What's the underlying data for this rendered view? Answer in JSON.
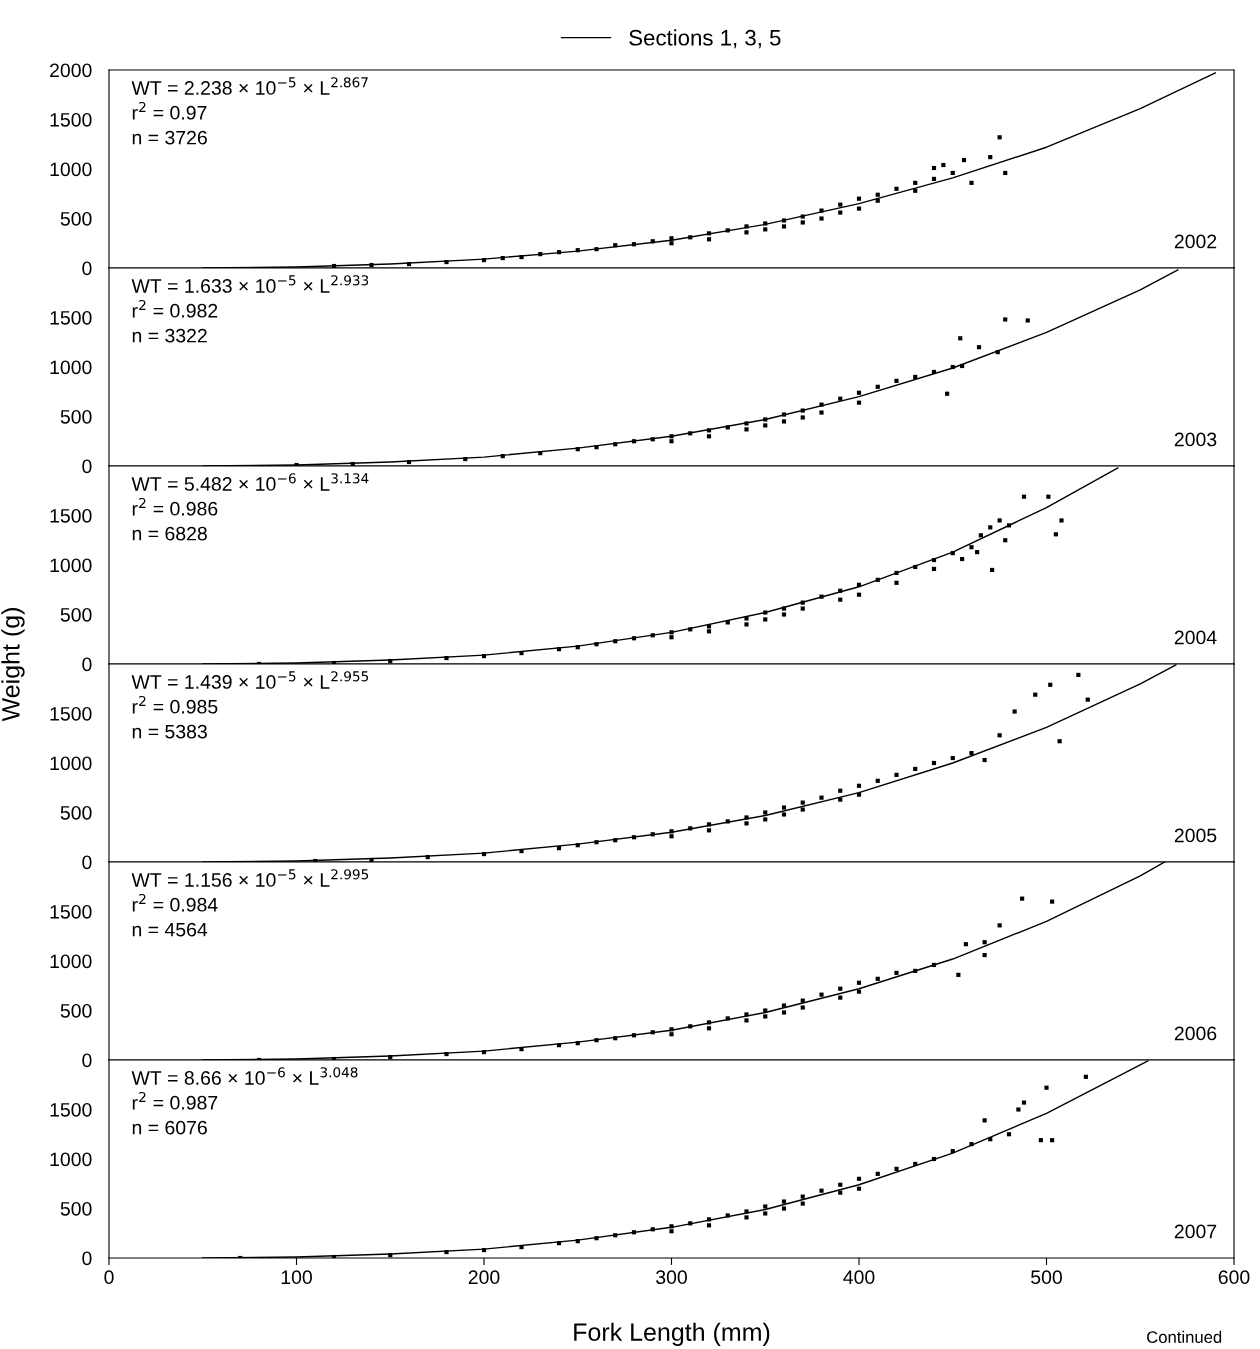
{
  "chart_data": [
    {
      "type": "scatter",
      "legend": "top",
      "tick_labels": "y",
      "grid": false,
      "xlim": [
        0,
        600
      ],
      "xticks": [
        0,
        100,
        200,
        300,
        400,
        500,
        600
      ],
      "ylim": [
        0,
        2000
      ],
      "yticks": [
        0,
        500,
        1000,
        1500,
        2000
      ],
      "annotations": [
        "WT = 2.238 × 10$^{−5}$ × L$^{2.867}$",
        "r$^{2}$ = 0.97",
        "n = 3726",
        "2002"
      ],
      "series": [
        {
          "marker": "square",
          "color": "#000000",
          "x": [
            120,
            140,
            160,
            180,
            200,
            210,
            220,
            230,
            240,
            250,
            260,
            270,
            280,
            290,
            300,
            300,
            310,
            320,
            320,
            330,
            340,
            340,
            350,
            350,
            360,
            360,
            370,
            370,
            380,
            380,
            390,
            390,
            400,
            400,
            410,
            410,
            420,
            430,
            430,
            440,
            440,
            445,
            450,
            456,
            460,
            470,
            475,
            478
          ],
          "values": [
            20,
            30,
            40,
            60,
            80,
            100,
            110,
            140,
            160,
            180,
            190,
            230,
            240,
            270,
            300,
            250,
            310,
            350,
            290,
            380,
            420,
            360,
            450,
            390,
            480,
            420,
            520,
            460,
            580,
            500,
            640,
            560,
            700,
            600,
            740,
            680,
            800,
            860,
            780,
            900,
            1010,
            1040,
            960,
            1090,
            860,
            1120,
            1320,
            960
          ]
        },
        {
          "type": "line",
          "marker": "none",
          "name": "Sections 1, 3, 5",
          "color": "#000000",
          "x": [
            50,
            100,
            150,
            200,
            250,
            300,
            350,
            400,
            450,
            500,
            550,
            590
          ],
          "values": [
            0,
            10,
            40,
            90,
            170,
            280,
            440,
            650,
            910,
            1220,
            1610,
            1970
          ]
        }
      ]
    },
    {
      "type": "scatter",
      "tick_labels": "y",
      "grid": false,
      "xlim": [
        0,
        600
      ],
      "xticks": [
        0,
        100,
        200,
        300,
        400,
        500,
        600
      ],
      "ylim": [
        0,
        2000
      ],
      "yticks": [
        0,
        500,
        1000,
        1500
      ],
      "annotations": [
        "WT = 1.633 × 10$^{−5}$ × L$^{2.933}$",
        "r$^{2}$ = 0.982",
        "n = 3322",
        "2003"
      ],
      "series": [
        {
          "marker": "square",
          "color": "#000000",
          "x": [
            100,
            130,
            160,
            190,
            210,
            230,
            250,
            260,
            270,
            280,
            290,
            300,
            300,
            310,
            320,
            320,
            330,
            340,
            340,
            350,
            350,
            360,
            360,
            370,
            370,
            380,
            380,
            390,
            400,
            400,
            410,
            420,
            430,
            440,
            447,
            450,
            454,
            455,
            464,
            474,
            478,
            490
          ],
          "values": [
            10,
            20,
            40,
            70,
            100,
            130,
            170,
            190,
            220,
            250,
            270,
            300,
            250,
            330,
            360,
            300,
            390,
            430,
            370,
            470,
            410,
            520,
            450,
            560,
            490,
            620,
            540,
            680,
            740,
            640,
            800,
            860,
            900,
            950,
            730,
            1000,
            1290,
            1010,
            1200,
            1150,
            1480,
            1470
          ]
        },
        {
          "type": "line",
          "marker": "none",
          "color": "#000000",
          "x": [
            50,
            100,
            150,
            200,
            250,
            300,
            350,
            400,
            450,
            500,
            550,
            570
          ],
          "values": [
            0,
            10,
            40,
            90,
            180,
            300,
            470,
            700,
            990,
            1350,
            1780,
            1980
          ]
        }
      ]
    },
    {
      "type": "scatter",
      "tick_labels": "y",
      "grid": false,
      "xlim": [
        0,
        600
      ],
      "xticks": [
        0,
        100,
        200,
        300,
        400,
        500,
        600
      ],
      "ylim": [
        0,
        2000
      ],
      "yticks": [
        0,
        500,
        1000,
        1500
      ],
      "ylabel": "Weight (g)",
      "annotations": [
        "WT = 5.482 × 10$^{−6}$ × L$^{3.134}$",
        "r$^{2}$ = 0.986",
        "n = 6828",
        "2004"
      ],
      "series": [
        {
          "marker": "square",
          "color": "#000000",
          "x": [
            80,
            120,
            150,
            180,
            200,
            220,
            240,
            250,
            260,
            270,
            280,
            290,
            300,
            300,
            310,
            320,
            320,
            330,
            340,
            340,
            350,
            350,
            360,
            360,
            370,
            370,
            380,
            390,
            390,
            400,
            400,
            410,
            420,
            420,
            430,
            440,
            440,
            450,
            455,
            460,
            463,
            465,
            470,
            471,
            475,
            478,
            480,
            488,
            501,
            505,
            508
          ],
          "values": [
            0,
            10,
            30,
            60,
            80,
            110,
            150,
            170,
            200,
            230,
            260,
            290,
            320,
            270,
            350,
            380,
            330,
            420,
            460,
            400,
            520,
            450,
            560,
            500,
            620,
            560,
            680,
            740,
            650,
            800,
            700,
            850,
            920,
            820,
            980,
            1050,
            960,
            1120,
            1060,
            1180,
            1130,
            1300,
            1380,
            950,
            1450,
            1250,
            1400,
            1690,
            1690,
            1310,
            1450
          ]
        },
        {
          "type": "line",
          "marker": "none",
          "color": "#000000",
          "x": [
            50,
            100,
            150,
            200,
            250,
            300,
            350,
            400,
            450,
            500,
            538
          ],
          "values": [
            0,
            10,
            40,
            90,
            180,
            320,
            520,
            780,
            1130,
            1580,
            1980
          ]
        }
      ]
    },
    {
      "type": "scatter",
      "tick_labels": "y",
      "grid": false,
      "xlim": [
        0,
        600
      ],
      "xticks": [
        0,
        100,
        200,
        300,
        400,
        500,
        600
      ],
      "ylim": [
        0,
        2000
      ],
      "yticks": [
        0,
        500,
        1000,
        1500
      ],
      "annotations": [
        "WT = 1.439 × 10$^{−5}$ × L$^{2.955}$",
        "r$^{2}$ = 0.985",
        "n = 5383",
        "2005"
      ],
      "series": [
        {
          "marker": "square",
          "color": "#000000",
          "x": [
            110,
            140,
            170,
            200,
            220,
            240,
            250,
            260,
            270,
            280,
            290,
            300,
            300,
            310,
            320,
            320,
            330,
            340,
            340,
            350,
            350,
            360,
            360,
            370,
            370,
            380,
            390,
            390,
            400,
            400,
            410,
            420,
            430,
            440,
            450,
            460,
            467,
            475,
            483,
            494,
            502,
            507,
            517,
            522
          ],
          "values": [
            10,
            20,
            50,
            80,
            110,
            140,
            170,
            200,
            220,
            250,
            280,
            310,
            260,
            340,
            380,
            320,
            410,
            450,
            390,
            500,
            430,
            550,
            480,
            600,
            530,
            650,
            720,
            630,
            770,
            680,
            820,
            880,
            940,
            1000,
            1050,
            1100,
            1030,
            1280,
            1520,
            1690,
            1790,
            1220,
            1890,
            1640
          ]
        },
        {
          "type": "line",
          "marker": "none",
          "color": "#000000",
          "x": [
            50,
            100,
            150,
            200,
            250,
            300,
            350,
            400,
            450,
            500,
            550,
            569
          ],
          "values": [
            0,
            10,
            40,
            90,
            180,
            300,
            470,
            700,
            1000,
            1360,
            1800,
            1990
          ]
        }
      ]
    },
    {
      "type": "scatter",
      "tick_labels": "y",
      "grid": false,
      "xlim": [
        0,
        600
      ],
      "xticks": [
        0,
        100,
        200,
        300,
        400,
        500,
        600
      ],
      "ylim": [
        0,
        2000
      ],
      "yticks": [
        0,
        500,
        1000,
        1500
      ],
      "annotations": [
        "WT = 1.156 × 10$^{−5}$ × L$^{2.995}$",
        "r$^{2}$ = 0.984",
        "n = 4564",
        "2006"
      ],
      "series": [
        {
          "marker": "square",
          "color": "#000000",
          "x": [
            80,
            120,
            150,
            180,
            200,
            220,
            240,
            250,
            260,
            270,
            280,
            290,
            300,
            300,
            310,
            320,
            320,
            330,
            340,
            340,
            350,
            350,
            360,
            360,
            370,
            370,
            380,
            390,
            390,
            400,
            400,
            410,
            420,
            430,
            440,
            453,
            457,
            467,
            467,
            475,
            487,
            503
          ],
          "values": [
            0,
            10,
            30,
            60,
            80,
            110,
            150,
            170,
            200,
            220,
            250,
            280,
            310,
            260,
            340,
            380,
            320,
            420,
            460,
            400,
            500,
            440,
            550,
            480,
            600,
            530,
            660,
            720,
            630,
            780,
            690,
            820,
            880,
            900,
            960,
            860,
            1170,
            1060,
            1190,
            1360,
            1630,
            1600
          ]
        },
        {
          "type": "line",
          "marker": "none",
          "color": "#000000",
          "x": [
            50,
            100,
            150,
            200,
            250,
            300,
            350,
            400,
            450,
            500,
            550,
            563
          ],
          "values": [
            0,
            10,
            40,
            90,
            180,
            300,
            480,
            720,
            1020,
            1400,
            1860,
            2000
          ]
        }
      ]
    },
    {
      "type": "scatter",
      "grid": false,
      "xlim": [
        0,
        600
      ],
      "xticks": [
        0,
        100,
        200,
        300,
        400,
        500,
        600
      ],
      "ylim": [
        0,
        2000
      ],
      "yticks": [
        0,
        500,
        1000,
        1500
      ],
      "xlabel": "Fork Length (mm)",
      "annotations": [
        "WT = 8.66 × 10$^{−6}$ × L$^{3.048}$",
        "r$^{2}$ = 0.987",
        "n = 6076",
        "2007",
        "Continued"
      ],
      "series": [
        {
          "marker": "square",
          "color": "#000000",
          "x": [
            70,
            120,
            150,
            180,
            200,
            220,
            240,
            250,
            260,
            270,
            280,
            290,
            300,
            300,
            310,
            320,
            320,
            330,
            340,
            340,
            350,
            350,
            360,
            360,
            370,
            370,
            380,
            390,
            390,
            400,
            400,
            410,
            420,
            430,
            440,
            450,
            460,
            467,
            470,
            480,
            485,
            488,
            497,
            500,
            503,
            521
          ],
          "values": [
            0,
            10,
            30,
            60,
            80,
            110,
            150,
            170,
            200,
            230,
            260,
            290,
            320,
            270,
            350,
            390,
            330,
            430,
            470,
            410,
            520,
            450,
            570,
            500,
            620,
            550,
            680,
            740,
            660,
            800,
            700,
            850,
            900,
            950,
            1000,
            1080,
            1150,
            1390,
            1200,
            1250,
            1500,
            1570,
            1190,
            1720,
            1190,
            1830
          ]
        },
        {
          "type": "line",
          "marker": "none",
          "color": "#000000",
          "x": [
            50,
            100,
            150,
            200,
            250,
            300,
            350,
            400,
            450,
            500,
            550,
            554
          ],
          "values": [
            0,
            10,
            40,
            90,
            180,
            310,
            490,
            740,
            1060,
            1460,
            1950,
            1990
          ]
        }
      ]
    }
  ]
}
